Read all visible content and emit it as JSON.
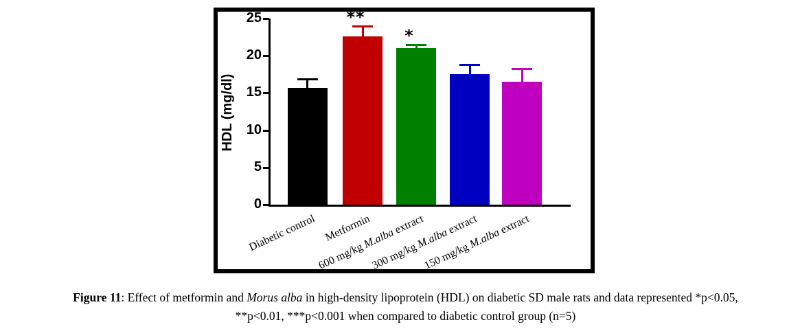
{
  "figure": {
    "caption": {
      "label": "Figure 11",
      "line1_pre": ": Effect of metformin and ",
      "line1_italic": "Morus alba",
      "line1_post": " in high-density lipoprotein (HDL) on diabetic SD male rats and data represented *p<0.05,",
      "line2": "**p<0.01, ***p<0.001 when compared to diabetic control group (n=5)"
    }
  },
  "chart_data": {
    "type": "bar",
    "title": "",
    "xlabel": "",
    "ylabel": "HDL (mg/dl)",
    "ylim": [
      0,
      25
    ],
    "yticks": [
      0,
      5,
      10,
      15,
      20,
      25
    ],
    "grid": false,
    "legend": "none",
    "axis_color": "#000000",
    "categories": [
      "Diabetic control",
      "Metformin",
      "600 mg/kg M.alba extract",
      "300 mg/kg M.alba extract",
      "150 mg/kg M.alba extract"
    ],
    "categories_rich": [
      [
        {
          "text": "Diabetic control",
          "italic": false
        }
      ],
      [
        {
          "text": "Metformin",
          "italic": false
        }
      ],
      [
        {
          "text": "600 mg/kg ",
          "italic": false
        },
        {
          "text": "M.alba",
          "italic": true
        },
        {
          "text": " extract",
          "italic": false
        }
      ],
      [
        {
          "text": "300 mg/kg ",
          "italic": false
        },
        {
          "text": "M.alba",
          "italic": true
        },
        {
          "text": " extract",
          "italic": false
        }
      ],
      [
        {
          "text": "150 mg/kg ",
          "italic": false
        },
        {
          "text": "M.alba",
          "italic": true
        },
        {
          "text": " extract",
          "italic": false
        }
      ]
    ],
    "series": [
      {
        "name": "HDL (mg/dl)",
        "values": [
          15.7,
          22.6,
          21.0,
          17.5,
          16.5
        ],
        "errors_upper": [
          1.3,
          1.5,
          0.6,
          1.4,
          1.9
        ],
        "significance": [
          "",
          "**",
          "*",
          "",
          ""
        ]
      }
    ],
    "bar_colors": [
      "#000000",
      "#c00000",
      "#008000",
      "#0000c0",
      "#c000c0"
    ]
  }
}
